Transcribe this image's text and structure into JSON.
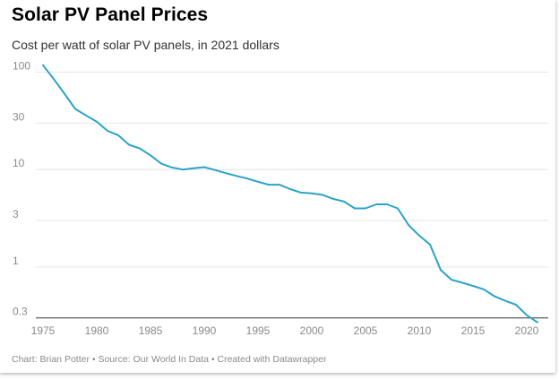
{
  "header": {
    "title": "Solar PV Panel Prices",
    "subtitle": "Cost per watt of solar PV panels, in 2021 dollars"
  },
  "footer": {
    "credit": "Chart: Brian Potter • Source: Our World In Data • Created with Datawrapper"
  },
  "chart_data": {
    "type": "line",
    "title": "Solar PV Panel Prices",
    "subtitle": "Cost per watt of solar PV panels, in 2021 dollars",
    "xlabel": "",
    "ylabel": "",
    "y_scale": "log",
    "grid": true,
    "legend": "none",
    "xlim": [
      1975,
      2021
    ],
    "ylim": [
      0.28,
      125
    ],
    "x_ticks": [
      1975,
      1980,
      1985,
      1990,
      1995,
      2000,
      2005,
      2010,
      2015,
      2020
    ],
    "x_tick_labels": [
      "1975",
      "1980",
      "1985",
      "1990",
      "1995",
      "2000",
      "2005",
      "2010",
      "2015",
      "2020"
    ],
    "y_ticks": [
      0.3,
      1,
      3,
      10,
      30,
      100
    ],
    "y_tick_labels": [
      "0.3",
      "1",
      "3",
      "10",
      "30",
      "100"
    ],
    "line_color": "#2aa3c7",
    "series": [
      {
        "x": [
          1975,
          1976,
          1977,
          1978,
          1979,
          1980,
          1981,
          1982,
          1983,
          1984,
          1985,
          1986,
          1987,
          1988,
          1989,
          1990,
          1991,
          1992,
          1993,
          1994,
          1995,
          1996,
          1997,
          1998,
          1999,
          2000,
          2001,
          2002,
          2003,
          2004,
          2005,
          2006,
          2007,
          2008,
          2009,
          2010,
          2011,
          2012,
          2013,
          2014,
          2015,
          2016,
          2017,
          2018,
          2019,
          2020,
          2021
        ],
        "values": [
          118,
          85,
          60,
          42,
          36,
          31,
          25,
          22.5,
          18,
          16.5,
          14,
          11.5,
          10.5,
          10,
          10.3,
          10.6,
          9.9,
          9.2,
          8.6,
          8.1,
          7.5,
          7.0,
          7.0,
          6.3,
          5.8,
          5.7,
          5.5,
          5.0,
          4.7,
          4.0,
          4.0,
          4.4,
          4.4,
          4.0,
          2.7,
          2.1,
          1.7,
          0.93,
          0.74,
          0.69,
          0.64,
          0.59,
          0.5,
          0.45,
          0.41,
          0.32,
          0.27
        ]
      }
    ]
  }
}
